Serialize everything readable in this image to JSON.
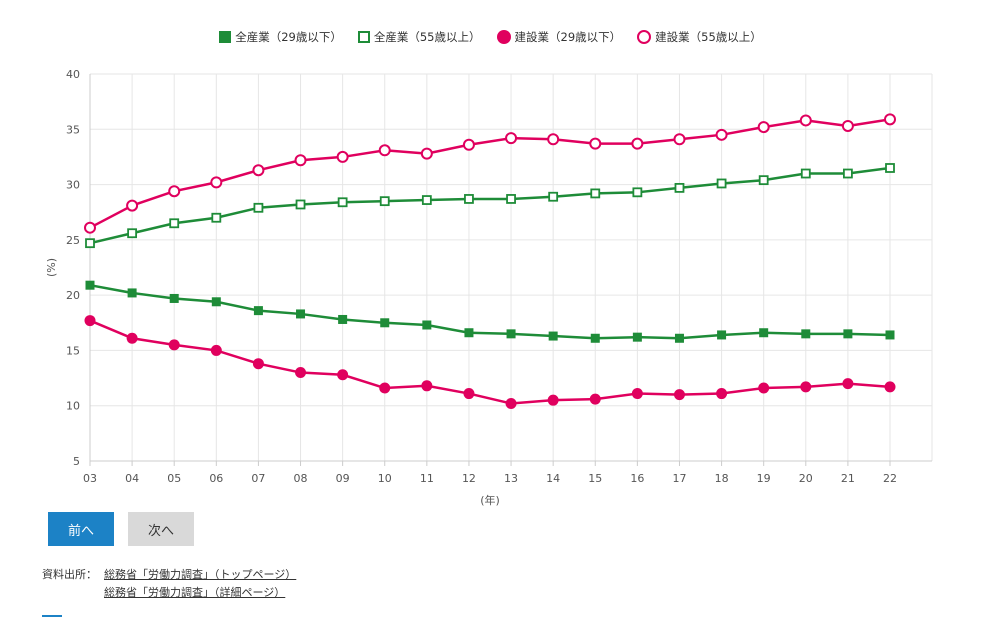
{
  "chart_data": {
    "type": "line",
    "x": [
      "03",
      "04",
      "05",
      "06",
      "07",
      "08",
      "09",
      "10",
      "11",
      "12",
      "13",
      "14",
      "15",
      "16",
      "17",
      "18",
      "19",
      "20",
      "21",
      "22"
    ],
    "series": [
      {
        "name": "全産業（29歳以下）",
        "color": "#1e8c38",
        "marker": "square-filled",
        "values": [
          20.9,
          20.2,
          19.7,
          19.4,
          18.6,
          18.3,
          17.8,
          17.5,
          17.3,
          16.6,
          16.5,
          16.3,
          16.1,
          16.2,
          16.1,
          16.4,
          16.6,
          16.5,
          16.5,
          16.4
        ]
      },
      {
        "name": "全産業（55歳以上）",
        "color": "#1e8c38",
        "marker": "square-open",
        "values": [
          24.7,
          25.6,
          26.5,
          27.0,
          27.9,
          28.2,
          28.4,
          28.5,
          28.6,
          28.7,
          28.7,
          28.9,
          29.2,
          29.3,
          29.7,
          30.1,
          30.4,
          31.0,
          31.0,
          31.5
        ]
      },
      {
        "name": "建設業（29歳以下）",
        "color": "#e0005e",
        "marker": "circle-filled",
        "values": [
          17.7,
          16.1,
          15.5,
          15.0,
          13.8,
          13.0,
          12.8,
          11.6,
          11.8,
          11.1,
          10.2,
          10.5,
          10.6,
          11.1,
          11.0,
          11.1,
          11.6,
          11.7,
          12.0,
          11.7
        ]
      },
      {
        "name": "建設業（55歳以上）",
        "color": "#e0005e",
        "marker": "circle-open",
        "values": [
          26.1,
          28.1,
          29.4,
          30.2,
          31.3,
          32.2,
          32.5,
          33.1,
          32.8,
          33.6,
          34.2,
          34.1,
          33.7,
          33.7,
          34.1,
          34.5,
          35.2,
          35.8,
          35.3,
          35.9
        ]
      }
    ],
    "xlabel": "(年)",
    "ylabel": "(%)",
    "ylim": [
      5,
      40
    ],
    "yticks": [
      5,
      10,
      15,
      20,
      25,
      30,
      35,
      40
    ],
    "grid": true,
    "legend_position": "top-center"
  },
  "nav": {
    "prev_label": "前へ",
    "next_label": "次へ"
  },
  "source": {
    "label": "資料出所：",
    "links": [
      "総務省「労働力調査」（トップページ）",
      "総務省「労働力調査」（詳細ページ）"
    ]
  }
}
